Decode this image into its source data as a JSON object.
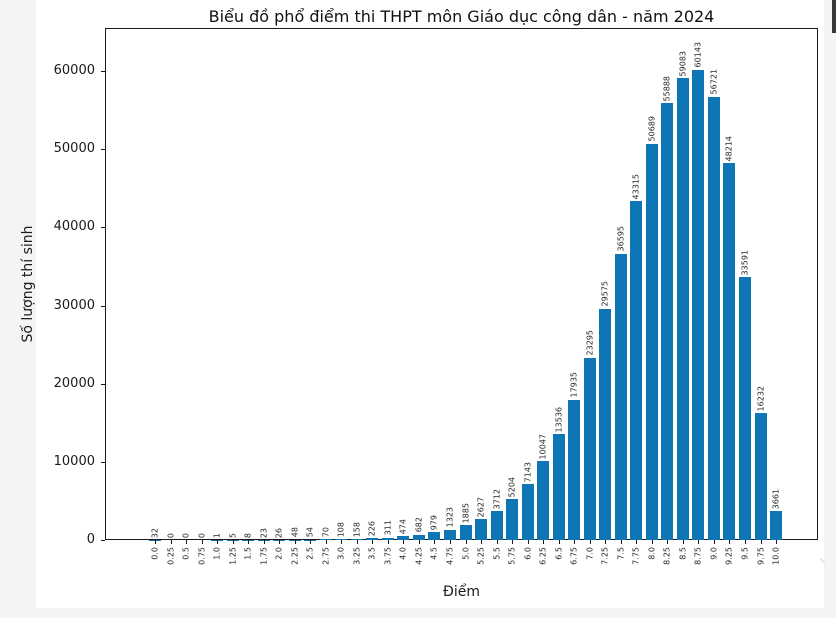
{
  "page": {
    "background": "#f4f4f5",
    "figure_background": "#ffffff"
  },
  "chart_data": {
    "type": "bar",
    "title": "Biểu đồ phổ điểm thi THPT môn Giáo dục công dân - năm 2024",
    "xlabel": "Điểm",
    "ylabel": "Số lượng thí sinh",
    "categories": [
      "0.0",
      "0.25",
      "0.5",
      "0.75",
      "1.0",
      "1.25",
      "1.5",
      "1.75",
      "2.0",
      "2.25",
      "2.5",
      "2.75",
      "3.0",
      "3.25",
      "3.5",
      "3.75",
      "4.0",
      "4.25",
      "4.5",
      "4.75",
      "5.0",
      "5.25",
      "5.5",
      "5.75",
      "6.0",
      "6.25",
      "6.5",
      "6.75",
      "7.0",
      "7.25",
      "7.5",
      "7.75",
      "8.0",
      "8.25",
      "8.5",
      "8.75",
      "9.0",
      "9.25",
      "9.5",
      "9.75",
      "10.0"
    ],
    "values": [
      32,
      0,
      0,
      0,
      1,
      5,
      8,
      23,
      26,
      48,
      54,
      70,
      108,
      158,
      226,
      311,
      474,
      682,
      979,
      1323,
      1885,
      2627,
      3712,
      5204,
      7143,
      10047,
      13536,
      17935,
      23295,
      29575,
      36595,
      43315,
      50689,
      55888,
      59083,
      60143,
      56721,
      48214,
      33591,
      16232,
      3661
    ],
    "yticks": [
      0,
      10000,
      20000,
      30000,
      40000,
      50000,
      60000
    ],
    "ylim": [
      0,
      65500
    ],
    "bar_color": "#0e76b4",
    "axis_color": "#1a1a1a",
    "value_labels_shown": true,
    "grid": false,
    "legend_position": "none"
  },
  "artifact": {
    "glyph": "~"
  }
}
